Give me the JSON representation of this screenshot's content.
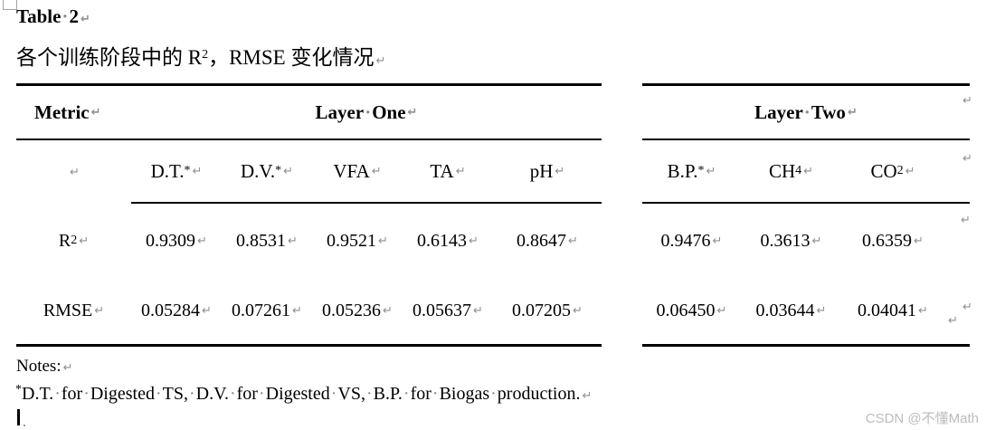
{
  "title": "Table 2",
  "subtitle": {
    "prefix": "各个训练阶段中的 R",
    "sup": "2",
    "suffix": "，RMSE 变化情况"
  },
  "table": {
    "metric_label": "Metric",
    "group1_label": "Layer One",
    "group2_label": "Layer Two",
    "layer_one_columns": [
      {
        "base": "D.T.",
        "sup": "*"
      },
      {
        "base": "D.V.",
        "sup": "*"
      },
      {
        "base": "VFA",
        "sup": ""
      },
      {
        "base": "TA",
        "sup": ""
      },
      {
        "base": "pH",
        "sup": ""
      }
    ],
    "layer_two_columns": [
      {
        "base": "B.P.",
        "sup": "*",
        "sub": ""
      },
      {
        "base": "CH",
        "sup": "",
        "sub": "4"
      },
      {
        "base": "CO",
        "sup": "",
        "sub": "2"
      }
    ],
    "rows": [
      {
        "label_base": "R",
        "label_sup": "2",
        "layer_one": [
          "0.9309",
          "0.8531",
          "0.9521",
          "0.6143",
          "0.8647"
        ],
        "layer_two": [
          "0.9476",
          "0.3613",
          "0.6359"
        ]
      },
      {
        "label_base": "RMSE",
        "label_sup": "",
        "layer_one": [
          "0.05284",
          "0.07261",
          "0.05236",
          "0.05637",
          "0.07205"
        ],
        "layer_two": [
          "0.06450",
          "0.03644",
          "0.04041"
        ]
      }
    ]
  },
  "notes": {
    "label": "Notes:",
    "sup": "*",
    "text": "D.T. for Digested TS, D.V. for Digested VS, B.P. for Biogas production."
  },
  "watermark": "CSDN @不懂Math",
  "marks": {
    "return": "↵"
  },
  "colors": {
    "text": "#000000",
    "formatting_mark": "#8f8f8f",
    "watermark": "#bcbcbc"
  }
}
